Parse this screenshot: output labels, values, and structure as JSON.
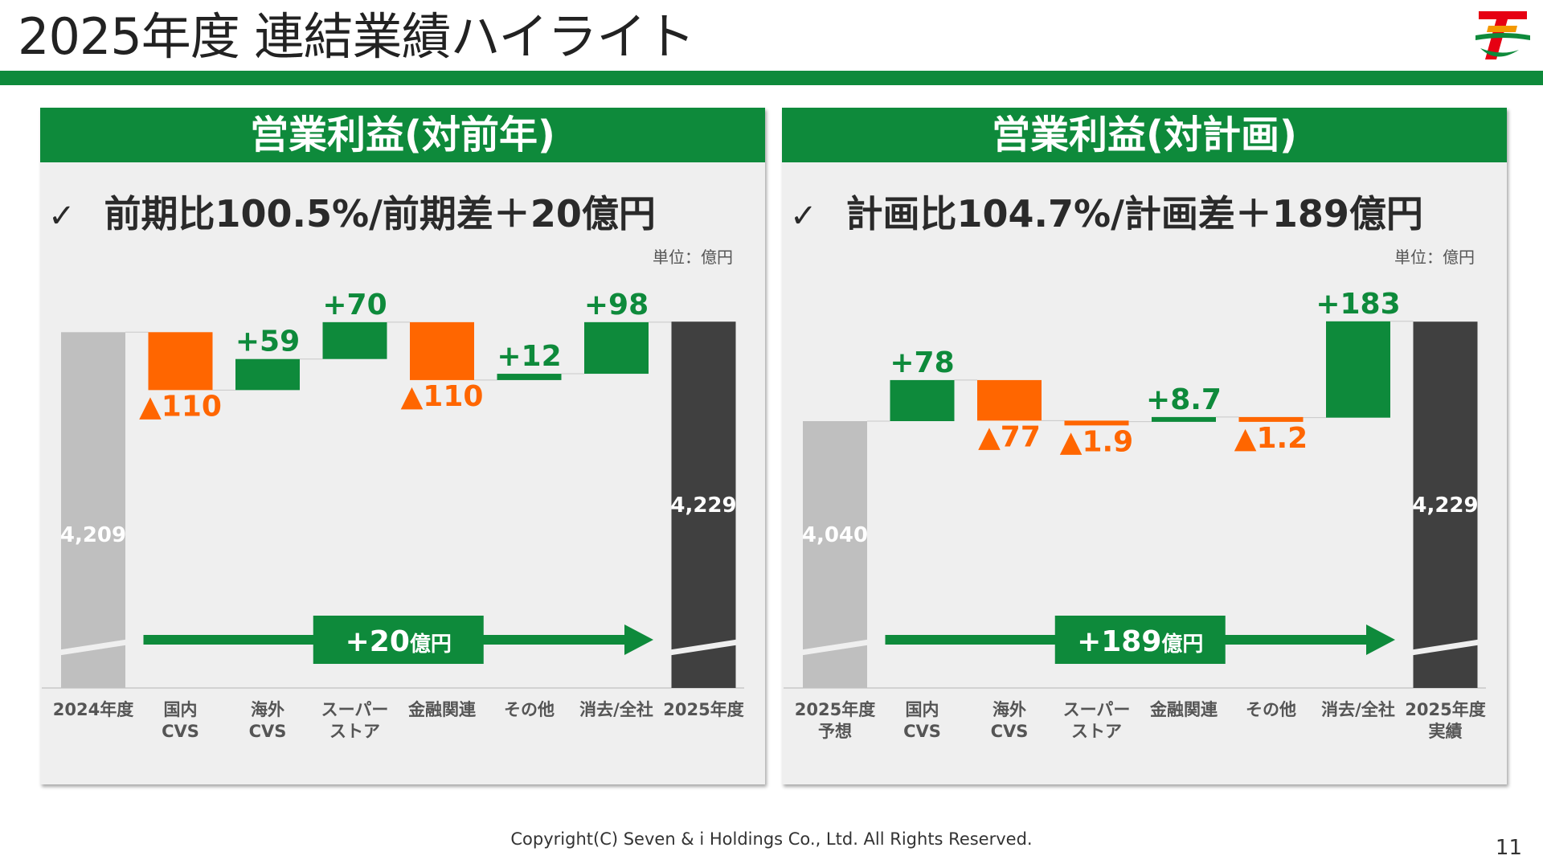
{
  "title": "2025年度 連結業績ハイライト",
  "logo_text": "SEVEN & i HOLDINGS",
  "colors": {
    "green": "#0e8a3b",
    "orange": "#ff6600",
    "gray_bar": "#bfbfbf",
    "dark_bar": "#404040"
  },
  "panels": [
    {
      "header": "営業利益(対前年)",
      "check": "✓",
      "headline": "前期比100.5%/前期差＋20億円",
      "unit": "単位：億円",
      "arrow_label": "+20",
      "arrow_unit": "億円"
    },
    {
      "header": "営業利益(対計画)",
      "check": "✓",
      "headline": "計画比104.7%/計画差＋189億円",
      "unit": "単位：億円",
      "arrow_label": "+189",
      "arrow_unit": "億円"
    }
  ],
  "chart_data": [
    {
      "type": "waterfall",
      "title": "営業利益(対前年)",
      "start": {
        "category": [
          "2024年度"
        ],
        "value": 4209,
        "label": "4,209"
      },
      "steps": [
        {
          "category": [
            "国内",
            "CVS"
          ],
          "value": -110,
          "label": "▲110"
        },
        {
          "category": [
            "海外",
            "CVS"
          ],
          "value": 59,
          "label": "+59"
        },
        {
          "category": [
            "スーパー",
            "ストア"
          ],
          "value": 70,
          "label": "+70"
        },
        {
          "category": [
            "金融関連"
          ],
          "value": -110,
          "label": "▲110"
        },
        {
          "category": [
            "その他"
          ],
          "value": 12,
          "label": "+12"
        },
        {
          "category": [
            "消去/全社"
          ],
          "value": 98,
          "label": "+98"
        }
      ],
      "end": {
        "category": [
          "2025年度"
        ],
        "value": 4229,
        "label": "4,229"
      },
      "total_change": 20,
      "axis_break": true
    },
    {
      "type": "waterfall",
      "title": "営業利益(対計画)",
      "start": {
        "category": [
          "2025年度",
          "予想"
        ],
        "value": 4040,
        "label": "4,040"
      },
      "steps": [
        {
          "category": [
            "国内",
            "CVS"
          ],
          "value": 78,
          "label": "+78"
        },
        {
          "category": [
            "海外",
            "CVS"
          ],
          "value": -77,
          "label": "▲77"
        },
        {
          "category": [
            "スーパー",
            "ストア"
          ],
          "value": -1.9,
          "label": "▲1.9"
        },
        {
          "category": [
            "金融関連"
          ],
          "value": 8.7,
          "label": "+8.7"
        },
        {
          "category": [
            "その他"
          ],
          "value": -1.2,
          "label": "▲1.2"
        },
        {
          "category": [
            "消去/全社"
          ],
          "value": 183,
          "label": "+183"
        }
      ],
      "end": {
        "category": [
          "2025年度",
          "実績"
        ],
        "value": 4229,
        "label": "4,229"
      },
      "total_change": 189,
      "axis_break": true
    }
  ],
  "footer": "Copyright(C) Seven & i Holdings Co., Ltd. All Rights Reserved.",
  "page_number": "11"
}
